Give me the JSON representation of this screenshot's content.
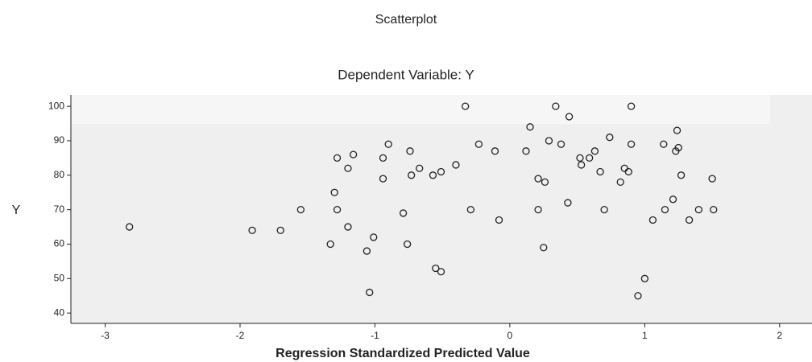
{
  "chart_data": {
    "type": "scatter",
    "title": "Scatterplot",
    "subtitle": "Dependent Variable: Y",
    "x_label": "Regression Standardized Predicted Value",
    "y_label": "Y",
    "xlim": [
      -3.254,
      2.24
    ],
    "ylim": [
      37.0,
      103.3
    ],
    "xticks": [
      -3,
      -2,
      -1,
      0,
      1,
      2
    ],
    "yticks": [
      40,
      50,
      60,
      70,
      80,
      90,
      100
    ],
    "series": [
      {
        "color": "#222222",
        "x": [
          -2.82,
          -1.91,
          -1.7,
          -1.55,
          -1.33,
          -1.3,
          -1.28,
          -1.28,
          -1.2,
          -1.2,
          -1.16,
          -1.06,
          -1.04,
          -1.01,
          -0.94,
          -0.94,
          -0.9,
          -0.79,
          -0.76,
          -0.74,
          -0.73,
          -0.67,
          -0.57,
          -0.55,
          -0.51,
          -0.51,
          -0.4,
          -0.33,
          -0.29,
          -0.23,
          -0.11,
          -0.08,
          0.12,
          0.15,
          0.21,
          0.21,
          0.26,
          0.25,
          0.29,
          0.34,
          0.38,
          0.43,
          0.44,
          0.52,
          0.53,
          0.59,
          0.63,
          0.67,
          0.7,
          0.74,
          0.82,
          0.85,
          0.88,
          0.9,
          0.9,
          0.95,
          1.0,
          1.06,
          1.14,
          1.15,
          1.21,
          1.24,
          1.23,
          1.25,
          1.27,
          1.33,
          1.4,
          1.5,
          1.51
        ],
        "values": [
          65,
          64,
          64,
          70,
          60,
          75,
          85,
          70,
          65,
          82,
          86,
          58,
          46,
          62,
          85,
          79,
          89,
          69,
          60,
          87,
          80,
          82,
          80,
          53,
          81,
          52,
          83,
          100,
          70,
          89,
          87,
          67,
          87,
          94,
          70,
          79,
          78,
          59,
          90,
          100,
          89,
          72,
          97,
          85,
          83,
          85,
          87,
          81,
          70,
          91,
          78,
          82,
          81,
          100,
          89,
          45,
          50,
          67,
          89,
          70,
          73,
          93,
          87,
          88,
          80,
          67,
          70,
          79,
          70
        ]
      }
    ]
  }
}
